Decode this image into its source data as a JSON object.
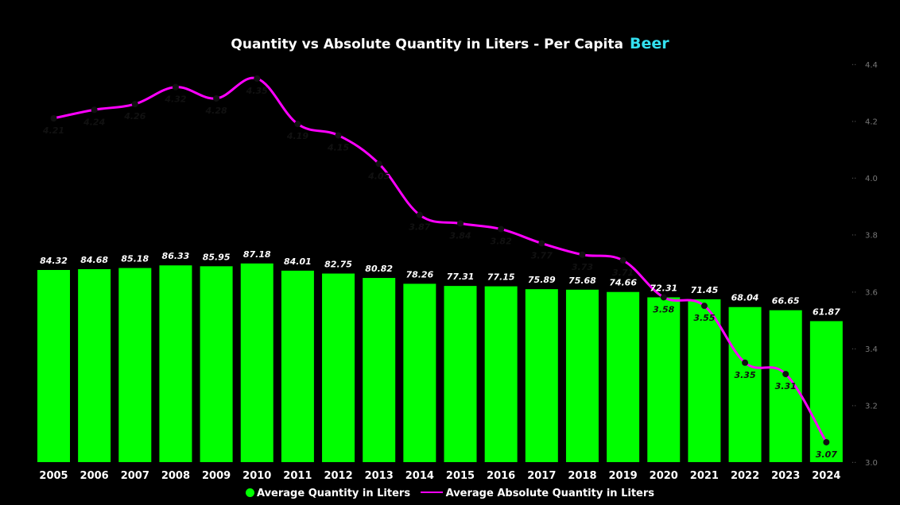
{
  "chart_data": {
    "type": "bar",
    "title": "Quantity vs Absolute Quantity in Liters - Per Capita",
    "title_highlight": "Beer",
    "categories": [
      "2005",
      "2006",
      "2007",
      "2008",
      "2009",
      "2010",
      "2011",
      "2012",
      "2013",
      "2014",
      "2015",
      "2016",
      "2017",
      "2018",
      "2019",
      "2020",
      "2021",
      "2022",
      "2023",
      "2024"
    ],
    "series": [
      {
        "name": "Average Quantity in Liters",
        "type": "bar",
        "color": "#00ff00",
        "values": [
          84.32,
          84.68,
          85.18,
          86.33,
          85.95,
          87.18,
          84.01,
          82.75,
          80.82,
          78.26,
          77.31,
          77.15,
          75.89,
          75.68,
          74.66,
          72.31,
          71.45,
          68.04,
          66.65,
          61.87
        ]
      },
      {
        "name": "Average Absolute Quantity in Liters",
        "type": "line",
        "color": "#ff00ff",
        "values": [
          4.21,
          4.24,
          4.26,
          4.32,
          4.28,
          4.35,
          4.19,
          4.15,
          4.05,
          3.87,
          3.84,
          3.82,
          3.77,
          3.73,
          3.71,
          3.58,
          3.55,
          3.35,
          3.31,
          3.07
        ]
      }
    ],
    "secondary_y_axis": {
      "position": "right",
      "ylim": [
        3.0,
        4.4
      ],
      "ticks": [
        "3.0",
        "3.2",
        "3.4",
        "3.6",
        "3.8",
        "4.0",
        "4.2",
        "4.4"
      ]
    },
    "legend_placement": "bottom-center",
    "grid": false
  }
}
